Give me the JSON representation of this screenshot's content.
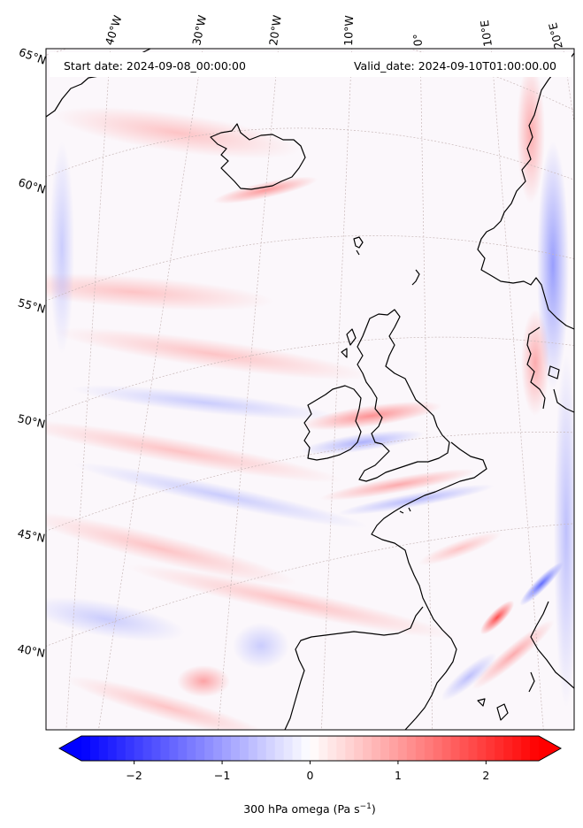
{
  "header": {
    "start_date": "Start date: 2024-09-08_00:00:00",
    "valid_date": "Valid_date: 2024-09-10T01:00:00.00"
  },
  "map": {
    "projection": "lambert-conformal",
    "lon_labels": [
      "40°W",
      "30°W",
      "20°W",
      "10°W",
      "0°",
      "10°E",
      "20°E"
    ],
    "lat_labels": [
      "65°N",
      "60°N",
      "55°N",
      "50°N",
      "45°N",
      "40°N"
    ],
    "gridlines": true,
    "field": "300 hPa omega"
  },
  "colorbar": {
    "label_main": "300 hPa omega (Pa s",
    "label_exp": "−1",
    "label_close": ")",
    "ticks": [
      "−2",
      "−1",
      "0",
      "1",
      "2"
    ],
    "tick_values": [
      -2,
      -1,
      0,
      1,
      2
    ],
    "range": [
      -2.6,
      2.6
    ],
    "colormap": "bwr",
    "extend": "both",
    "min_color": "#0000ff",
    "mid_color": "#ffffff",
    "max_color": "#ff0000"
  }
}
